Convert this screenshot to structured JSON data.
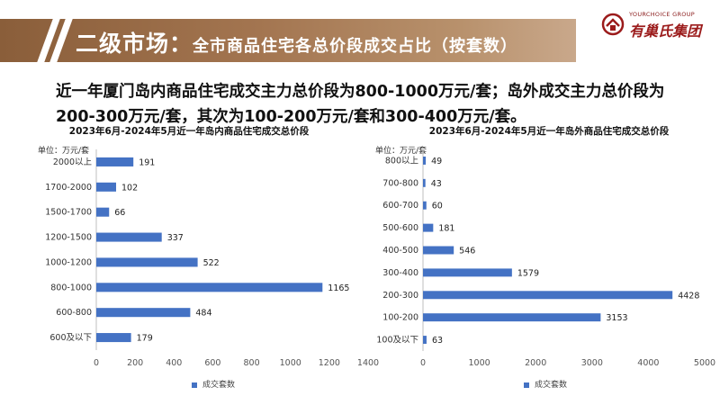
{
  "header": {
    "title": "二级市场：",
    "subtitle": "全市商品住宅各总价段成交占比（按套数）"
  },
  "logo": {
    "english": "YOURCHOICE GROUP",
    "chinese": "有巢氏集团"
  },
  "summary": "近一年厦门岛内商品住宅成交主力总价段为800-1000万元/套；岛外成交主力总价段为200-300万元/套，其次为100-200万元/套和300-400万元/套。",
  "colors": {
    "bar": "#4472c4",
    "header": "#a37550"
  },
  "chart_data": [
    {
      "type": "bar",
      "orientation": "horizontal",
      "title": "2023年6月-2024年5月近一年岛内商品住宅成交总价段",
      "unit": "单位：万元/套",
      "categories": [
        "2000以上",
        "1700-2000",
        "1500-1700",
        "1200-1500",
        "1000-1200",
        "800-1000",
        "600-800",
        "600及以下"
      ],
      "series": [
        {
          "name": "成交套数",
          "values": [
            191,
            102,
            66,
            337,
            522,
            1165,
            484,
            179
          ]
        }
      ],
      "xlim": [
        0,
        1400
      ],
      "xticks": [
        0,
        200,
        400,
        600,
        800,
        1000,
        1200,
        1400
      ],
      "legend": "bottom",
      "grid": false
    },
    {
      "type": "bar",
      "orientation": "horizontal",
      "title": "2023年6月-2024年5月近一年岛外商品住宅成交总价段",
      "unit": "单位：万元/套",
      "categories": [
        "800以上",
        "700-800",
        "600-700",
        "500-600",
        "400-500",
        "300-400",
        "200-300",
        "100-200",
        "100及以下"
      ],
      "series": [
        {
          "name": "成交套数",
          "values": [
            49,
            43,
            60,
            181,
            546,
            1579,
            4428,
            3153,
            63
          ]
        }
      ],
      "xlim": [
        0,
        5000
      ],
      "xticks": [
        0,
        1000,
        2000,
        3000,
        4000,
        5000
      ],
      "legend": "bottom",
      "grid": false
    }
  ]
}
